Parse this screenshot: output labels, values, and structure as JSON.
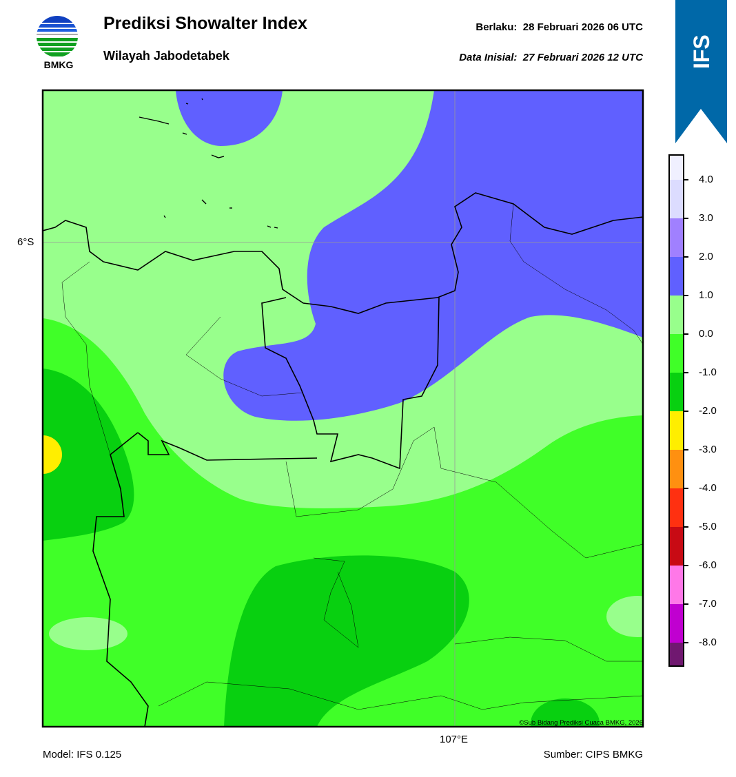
{
  "header": {
    "logo_text": "BMKG",
    "title": "Prediksi Showalter Index",
    "subtitle": "Wilayah Jabodetabek",
    "valid_label": "Berlaku:",
    "valid_value": "28 Februari 2026 06 UTC",
    "init_label": "Data Inisial:",
    "init_value": "27 Februari 2026 12 UTC",
    "model_badge": "IFS"
  },
  "map": {
    "lat_label": "6°S",
    "lon_label": "107°E",
    "copyright": "©Sub Bidang Prediksi Cuaca BMKG, 2026",
    "colors": {
      "light_green": "#98ff8c",
      "green": "#40ff28",
      "dark_green": "#08d010",
      "blue": "#6060ff",
      "yellow": "#ffee00"
    }
  },
  "colorbar": {
    "ticks": [
      "4.0",
      "3.0",
      "2.0",
      "1.0",
      "0.0",
      "-1.0",
      "-2.0",
      "-3.0",
      "-4.0",
      "-5.0",
      "-6.0",
      "-7.0",
      "-8.0"
    ],
    "colors": [
      "#f0f0ff",
      "#dcdcff",
      "#a080ff",
      "#6060ff",
      "#98ff8c",
      "#40ff28",
      "#08d010",
      "#ffee00",
      "#ff9010",
      "#ff3010",
      "#c80a14",
      "#ff78e8",
      "#c000d0",
      "#701870"
    ]
  },
  "footer": {
    "model": "Model: IFS 0.125",
    "source": "Sumber: CIPS BMKG"
  }
}
